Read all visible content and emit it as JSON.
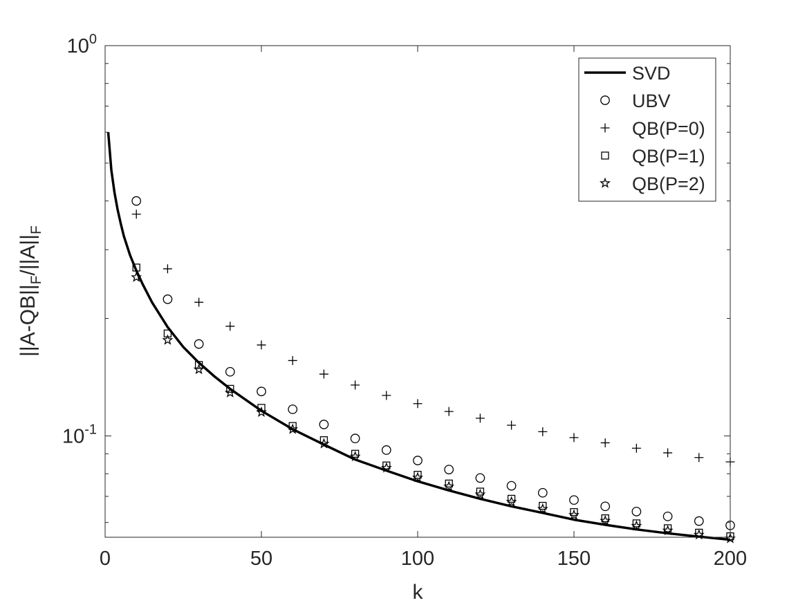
{
  "chart_data": {
    "type": "line",
    "title": "",
    "xlabel": "k",
    "ylabel_parts": {
      "base": "||A-QB||",
      "sub1": "F",
      "mid": "/||A||",
      "sub2": "F"
    },
    "xlim": [
      0,
      200
    ],
    "ylim": [
      0.055,
      1
    ],
    "yscale": "log",
    "xticks": [
      0,
      50,
      100,
      150,
      200
    ],
    "yticks": [
      {
        "value": 1,
        "base": "10",
        "exp": "0"
      },
      {
        "value": 0.1,
        "base": "10",
        "exp": "-1"
      }
    ],
    "grid": false,
    "legend_position": "top-right",
    "svd_curve": {
      "name": "SVD",
      "x": [
        1,
        2,
        3,
        4,
        5,
        6,
        8,
        10,
        12,
        15,
        20,
        25,
        30,
        35,
        40,
        50,
        60,
        70,
        80,
        90,
        100,
        110,
        120,
        130,
        140,
        150,
        160,
        170,
        180,
        190,
        200
      ],
      "y": [
        0.6,
        0.48,
        0.42,
        0.38,
        0.35,
        0.325,
        0.29,
        0.265,
        0.245,
        0.22,
        0.19,
        0.169,
        0.154,
        0.142,
        0.132,
        0.116,
        0.104,
        0.095,
        0.087,
        0.0815,
        0.0765,
        0.0725,
        0.069,
        0.066,
        0.0635,
        0.061,
        0.0592,
        0.0576,
        0.0563,
        0.0552,
        0.0542
      ]
    },
    "marker_series": [
      {
        "name": "UBV",
        "marker": "circle",
        "x": [
          10,
          20,
          30,
          40,
          50,
          60,
          70,
          80,
          90,
          100,
          110,
          120,
          130,
          140,
          150,
          160,
          170,
          180,
          190,
          200
        ],
        "y": [
          0.4,
          0.224,
          0.172,
          0.146,
          0.13,
          0.117,
          0.107,
          0.0985,
          0.092,
          0.0865,
          0.082,
          0.078,
          0.0745,
          0.0715,
          0.0685,
          0.066,
          0.064,
          0.0622,
          0.0605,
          0.059
        ]
      },
      {
        "name": "QB(P=0)",
        "marker": "plus",
        "x": [
          10,
          20,
          30,
          40,
          50,
          60,
          70,
          80,
          90,
          100,
          110,
          120,
          130,
          140,
          150,
          160,
          170,
          180,
          190,
          200
        ],
        "y": [
          0.37,
          0.268,
          0.22,
          0.191,
          0.171,
          0.156,
          0.144,
          0.135,
          0.127,
          0.121,
          0.1155,
          0.111,
          0.1065,
          0.1025,
          0.099,
          0.096,
          0.093,
          0.0905,
          0.088,
          0.0858
        ]
      },
      {
        "name": "QB(P=1)",
        "marker": "square",
        "x": [
          10,
          20,
          30,
          40,
          50,
          60,
          70,
          80,
          90,
          100,
          110,
          120,
          130,
          140,
          150,
          160,
          170,
          180,
          190,
          200
        ],
        "y": [
          0.27,
          0.183,
          0.152,
          0.132,
          0.118,
          0.106,
          0.0975,
          0.09,
          0.084,
          0.0795,
          0.0755,
          0.072,
          0.069,
          0.0662,
          0.0638,
          0.0615,
          0.0597,
          0.058,
          0.0565,
          0.0553
        ]
      },
      {
        "name": "QB(P=2)",
        "marker": "star",
        "x": [
          10,
          20,
          30,
          40,
          50,
          60,
          70,
          80,
          90,
          100,
          110,
          120,
          130,
          140,
          150,
          160,
          170,
          180,
          190,
          200
        ],
        "y": [
          0.255,
          0.176,
          0.148,
          0.129,
          0.115,
          0.104,
          0.0955,
          0.0885,
          0.0828,
          0.0782,
          0.0742,
          0.0708,
          0.0678,
          0.065,
          0.0627,
          0.0606,
          0.0588,
          0.0572,
          0.0558,
          0.0546
        ]
      }
    ]
  }
}
